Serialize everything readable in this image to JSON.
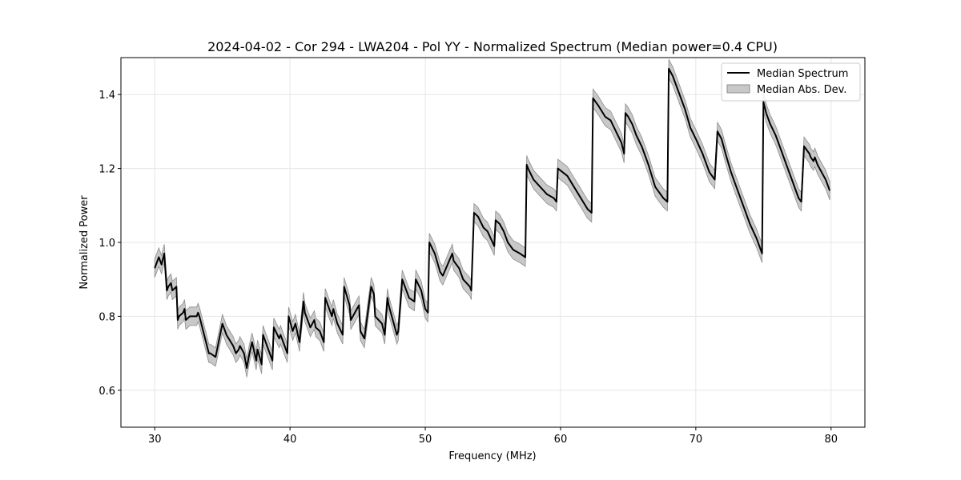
{
  "chart_data": {
    "type": "line",
    "title": "2024-04-02 - Cor 294 - LWA204 - Pol YY - Normalized Spectrum (Median power=0.4 CPU)",
    "xlabel": "Frequency (MHz)",
    "ylabel": "Normalized Power",
    "xlim": [
      27.5,
      82.5
    ],
    "ylim": [
      0.5,
      1.5
    ],
    "xticks": [
      30,
      40,
      50,
      60,
      70,
      80
    ],
    "yticks": [
      0.6,
      0.8,
      1.0,
      1.2,
      1.4
    ],
    "xtick_labels": [
      "30",
      "40",
      "50",
      "60",
      "70",
      "80"
    ],
    "ytick_labels": [
      "0.6",
      "0.8",
      "1.0",
      "1.2",
      "1.4"
    ],
    "grid": true,
    "legend_position": "top-right",
    "legend": [
      "Median Spectrum",
      "Median Abs. Dev."
    ],
    "colors": {
      "line": "#000000",
      "band": "#c8c8c8",
      "band_edge": "#8c8c8c",
      "grid": "#e6e6e6"
    },
    "series": [
      {
        "name": "Median Spectrum",
        "x": [
          30.0,
          30.3,
          30.5,
          30.7,
          30.9,
          31.0,
          31.2,
          31.3,
          31.6,
          31.7,
          31.8,
          32.1,
          32.2,
          32.3,
          32.6,
          32.8,
          33.1,
          33.2,
          33.3,
          34.0,
          34.1,
          34.5,
          35.0,
          35.2,
          35.3,
          35.8,
          36.0,
          36.2,
          36.3,
          36.6,
          36.8,
          37.0,
          37.2,
          37.5,
          37.6,
          37.9,
          38.0,
          38.3,
          38.7,
          38.8,
          39.2,
          39.3,
          39.8,
          39.9,
          40.2,
          40.4,
          40.7,
          41.0,
          41.1,
          41.5,
          41.8,
          41.9,
          42.2,
          42.5,
          42.6,
          43.1,
          43.2,
          43.5,
          43.9,
          44.0,
          44.4,
          44.5,
          45.1,
          45.2,
          45.5,
          46.0,
          46.2,
          46.3,
          46.8,
          47.0,
          47.2,
          47.3,
          47.9,
          48.0,
          48.3,
          48.4,
          48.8,
          49.2,
          49.3,
          49.7,
          50.0,
          50.2,
          50.3,
          50.7,
          51.1,
          51.3,
          52.0,
          52.1,
          52.5,
          52.8,
          53.3,
          53.4,
          53.6,
          53.9,
          54.3,
          54.6,
          55.1,
          55.2,
          55.5,
          55.8,
          56.1,
          56.5,
          57.0,
          57.4,
          57.5,
          57.6,
          58.0,
          58.5,
          59.0,
          59.5,
          59.7,
          59.8,
          60.5,
          61.0,
          61.5,
          62.0,
          62.3,
          62.4,
          62.8,
          63.3,
          63.7,
          64.1,
          64.5,
          64.7,
          64.8,
          65.0,
          65.3,
          65.6,
          66.0,
          66.5,
          67.0,
          67.6,
          67.9,
          68.0,
          68.3,
          68.8,
          69.2,
          69.6,
          70.0,
          70.5,
          71.0,
          71.4,
          71.6,
          71.9,
          72.2,
          72.6,
          73.0,
          73.5,
          74.0,
          74.5,
          74.9,
          75.0,
          75.2,
          75.5,
          75.9,
          76.3,
          76.8,
          77.2,
          77.6,
          77.8,
          78.0,
          78.4,
          78.5,
          78.7,
          78.8,
          79.0,
          79.3,
          79.6,
          79.9
        ],
        "values": [
          0.93,
          0.96,
          0.94,
          0.97,
          0.87,
          0.88,
          0.89,
          0.87,
          0.88,
          0.79,
          0.8,
          0.81,
          0.82,
          0.79,
          0.8,
          0.8,
          0.8,
          0.81,
          0.8,
          0.7,
          0.7,
          0.69,
          0.78,
          0.76,
          0.75,
          0.72,
          0.7,
          0.71,
          0.72,
          0.7,
          0.66,
          0.7,
          0.73,
          0.68,
          0.71,
          0.67,
          0.75,
          0.72,
          0.68,
          0.77,
          0.74,
          0.75,
          0.7,
          0.8,
          0.76,
          0.78,
          0.73,
          0.84,
          0.81,
          0.77,
          0.79,
          0.77,
          0.76,
          0.73,
          0.85,
          0.8,
          0.82,
          0.78,
          0.75,
          0.88,
          0.83,
          0.79,
          0.83,
          0.76,
          0.74,
          0.88,
          0.86,
          0.8,
          0.78,
          0.75,
          0.85,
          0.83,
          0.75,
          0.76,
          0.9,
          0.89,
          0.85,
          0.84,
          0.9,
          0.87,
          0.82,
          0.81,
          1.0,
          0.97,
          0.92,
          0.91,
          0.97,
          0.95,
          0.93,
          0.9,
          0.88,
          0.87,
          1.08,
          1.07,
          1.04,
          1.03,
          0.99,
          1.06,
          1.05,
          1.03,
          1.0,
          0.98,
          0.97,
          0.96,
          1.21,
          1.2,
          1.17,
          1.15,
          1.13,
          1.12,
          1.11,
          1.2,
          1.18,
          1.15,
          1.12,
          1.09,
          1.08,
          1.39,
          1.37,
          1.34,
          1.33,
          1.3,
          1.27,
          1.24,
          1.35,
          1.34,
          1.32,
          1.29,
          1.26,
          1.21,
          1.15,
          1.12,
          1.11,
          1.47,
          1.45,
          1.4,
          1.36,
          1.31,
          1.28,
          1.24,
          1.19,
          1.17,
          1.3,
          1.28,
          1.24,
          1.19,
          1.15,
          1.1,
          1.05,
          1.01,
          0.97,
          1.38,
          1.35,
          1.32,
          1.29,
          1.25,
          1.2,
          1.16,
          1.12,
          1.11,
          1.26,
          1.24,
          1.23,
          1.22,
          1.23,
          1.21,
          1.19,
          1.17,
          1.14
        ]
      }
    ],
    "band_halfwidth": 0.025
  }
}
